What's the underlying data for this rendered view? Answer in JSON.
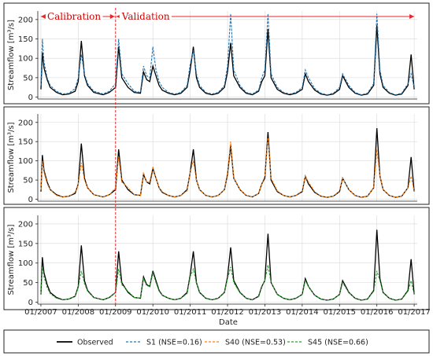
{
  "chart_data": {
    "type": "line",
    "xlabel": "Date",
    "ylabel": "Streamflow [m³/s]",
    "x_range": [
      "2006-12-01",
      "2017-01-31"
    ],
    "ylim": [
      -5,
      222
    ],
    "y_ticks": [
      0,
      50,
      100,
      150,
      200
    ],
    "x_ticks": [
      "01/2007",
      "01/2008",
      "01/2009",
      "01/2010",
      "01/2011",
      "01/2012",
      "01/2013",
      "01/2014",
      "01/2015",
      "01/2016",
      "01/2017"
    ],
    "grid": true,
    "legend_position": "bottom",
    "periods": {
      "calibration": {
        "label": "Calibration",
        "start": "2007-01",
        "end": "2009-01"
      },
      "validation": {
        "label": "Validation",
        "start": "2009-01",
        "end": "2017-01"
      },
      "divider_color": "#e8262a"
    },
    "observed": {
      "name": "Observed",
      "color": "#000000",
      "dates": [
        "2007-01",
        "2007-01",
        "2007-02",
        "2007-03",
        "2007-04",
        "2007-06",
        "2007-08",
        "2007-10",
        "2007-12",
        "2008-01",
        "2008-02",
        "2008-03",
        "2008-04",
        "2008-06",
        "2008-09",
        "2008-11",
        "2009-01",
        "2009-02",
        "2009-03",
        "2009-05",
        "2009-07",
        "2009-09",
        "2009-10",
        "2009-11",
        "2009-12",
        "2010-01",
        "2010-02",
        "2010-03",
        "2010-04",
        "2010-06",
        "2010-08",
        "2010-10",
        "2010-12",
        "2011-01",
        "2011-02",
        "2011-03",
        "2011-04",
        "2011-06",
        "2011-08",
        "2011-10",
        "2011-12",
        "2012-01",
        "2012-02",
        "2012-03",
        "2012-05",
        "2012-07",
        "2012-09",
        "2012-11",
        "2012-12",
        "2013-01",
        "2013-02",
        "2013-03",
        "2013-05",
        "2013-07",
        "2013-09",
        "2013-11",
        "2014-01",
        "2014-02",
        "2014-03",
        "2014-05",
        "2014-07",
        "2014-09",
        "2014-11",
        "2015-01",
        "2015-02",
        "2015-04",
        "2015-06",
        "2015-08",
        "2015-10",
        "2015-12",
        "2016-01",
        "2016-02",
        "2016-03",
        "2016-05",
        "2016-07",
        "2016-09",
        "2016-11",
        "2016-12",
        "2017-01"
      ],
      "values": [
        20,
        115,
        75,
        45,
        25,
        12,
        6,
        8,
        15,
        40,
        145,
        55,
        30,
        12,
        6,
        12,
        25,
        130,
        50,
        25,
        12,
        10,
        65,
        45,
        40,
        80,
        55,
        30,
        18,
        10,
        6,
        10,
        25,
        70,
        130,
        50,
        25,
        10,
        6,
        10,
        25,
        65,
        140,
        55,
        25,
        10,
        6,
        15,
        40,
        55,
        175,
        50,
        20,
        10,
        6,
        10,
        20,
        60,
        40,
        18,
        8,
        5,
        8,
        20,
        55,
        25,
        10,
        5,
        8,
        30,
        185,
        60,
        25,
        10,
        5,
        8,
        30,
        110,
        20
      ]
    },
    "panels": [
      {
        "series": {
          "name": "S1 (NSE=0.16)",
          "color": "#1f77b4",
          "values": [
            30,
            150,
            90,
            50,
            30,
            15,
            8,
            10,
            22,
            50,
            110,
            60,
            35,
            15,
            8,
            15,
            35,
            150,
            60,
            35,
            15,
            12,
            80,
            55,
            50,
            130,
            70,
            40,
            25,
            12,
            8,
            12,
            30,
            85,
            120,
            60,
            30,
            12,
            8,
            12,
            30,
            80,
            215,
            70,
            30,
            12,
            8,
            18,
            50,
            70,
            215,
            60,
            25,
            12,
            8,
            12,
            25,
            70,
            50,
            22,
            10,
            6,
            10,
            25,
            60,
            30,
            12,
            6,
            10,
            35,
            215,
            70,
            30,
            12,
            6,
            10,
            35,
            60,
            25
          ]
        }
      },
      {
        "series": {
          "name": "S40 (NSE=0.53)",
          "color": "#ff7f0e",
          "values": [
            25,
            100,
            70,
            40,
            25,
            10,
            6,
            8,
            18,
            40,
            95,
            50,
            30,
            12,
            6,
            12,
            30,
            110,
            45,
            30,
            12,
            10,
            70,
            45,
            45,
            85,
            55,
            30,
            20,
            10,
            6,
            10,
            22,
            70,
            100,
            50,
            25,
            10,
            6,
            10,
            25,
            70,
            150,
            55,
            25,
            10,
            6,
            15,
            40,
            60,
            160,
            55,
            22,
            10,
            6,
            10,
            22,
            60,
            45,
            20,
            8,
            5,
            8,
            22,
            55,
            25,
            10,
            5,
            8,
            30,
            130,
            60,
            25,
            10,
            5,
            8,
            30,
            60,
            20
          ]
        }
      },
      {
        "series": {
          "name": "S45 (NSE=0.66)",
          "color": "#2ca02c",
          "values": [
            22,
            90,
            65,
            38,
            22,
            10,
            6,
            8,
            15,
            38,
            80,
            48,
            28,
            12,
            6,
            12,
            25,
            85,
            45,
            28,
            12,
            10,
            60,
            42,
            40,
            75,
            50,
            28,
            18,
            10,
            6,
            10,
            22,
            65,
            85,
            48,
            24,
            10,
            6,
            10,
            24,
            60,
            90,
            50,
            24,
            10,
            6,
            14,
            38,
            55,
            95,
            50,
            20,
            10,
            6,
            10,
            20,
            55,
            40,
            18,
            8,
            5,
            8,
            20,
            50,
            24,
            10,
            5,
            8,
            28,
            80,
            55,
            24,
            10,
            5,
            8,
            28,
            55,
            20
          ]
        }
      }
    ]
  }
}
